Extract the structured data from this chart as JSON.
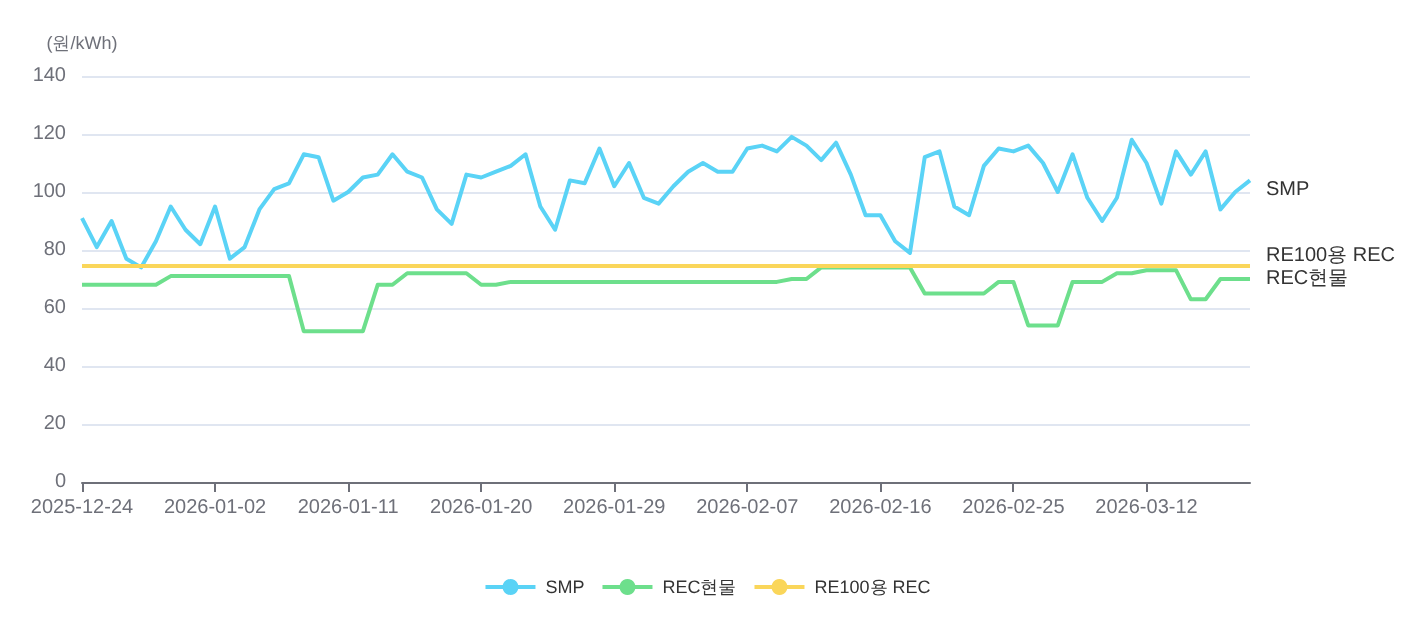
{
  "chart_data": {
    "type": "line",
    "ylabel": "(원/kWh)",
    "ylim": [
      0,
      140
    ],
    "yticks": [
      0,
      20,
      40,
      60,
      80,
      100,
      120,
      140
    ],
    "grid": "y",
    "legend": "bottom",
    "categories": [
      "2025-12-24",
      null,
      null,
      null,
      null,
      null,
      null,
      null,
      null,
      "2026-01-02",
      null,
      null,
      null,
      null,
      null,
      null,
      null,
      null,
      "2026-01-11",
      null,
      null,
      null,
      null,
      null,
      null,
      null,
      null,
      "2026-01-20",
      null,
      null,
      null,
      null,
      null,
      null,
      null,
      null,
      "2026-01-29",
      null,
      null,
      null,
      null,
      null,
      null,
      null,
      null,
      "2026-02-07",
      null,
      null,
      null,
      null,
      null,
      null,
      null,
      null,
      "2026-02-16",
      null,
      null,
      null,
      null,
      null,
      null,
      null,
      null,
      "2026-02-25",
      null,
      null,
      null,
      null,
      null,
      null,
      null,
      null,
      "2026-03-12",
      null,
      null,
      null,
      null,
      null,
      null,
      null
    ],
    "series": [
      {
        "name": "SMP",
        "color": "#5ad3f6",
        "values": [
          91,
          81,
          90,
          77,
          74,
          83,
          95,
          87,
          82,
          95,
          77,
          81,
          94,
          101,
          103,
          113,
          112,
          97,
          100,
          105,
          106,
          113,
          107,
          105,
          94,
          89,
          106,
          105,
          107,
          109,
          113,
          95,
          87,
          104,
          103,
          115,
          102,
          110,
          98,
          96,
          102,
          107,
          110,
          107,
          107,
          115,
          116,
          114,
          119,
          116,
          111,
          117,
          106,
          92,
          92,
          83,
          79,
          112,
          114,
          95,
          92,
          109,
          115,
          114,
          116,
          110,
          100,
          113,
          98,
          90,
          98,
          118,
          110,
          96,
          114,
          106,
          114,
          94,
          100,
          104
        ]
      },
      {
        "name": "REC현물",
        "color": "#6ddf8c",
        "values": [
          68,
          68,
          68,
          68,
          68,
          68,
          71,
          71,
          71,
          71,
          71,
          71,
          71,
          71,
          71,
          52,
          52,
          52,
          52,
          52,
          68,
          68,
          72,
          72,
          72,
          72,
          72,
          68,
          68,
          69,
          69,
          69,
          69,
          69,
          69,
          69,
          69,
          69,
          69,
          69,
          69,
          69,
          69,
          69,
          69,
          69,
          69,
          69,
          70,
          70,
          74,
          74,
          74,
          74,
          74,
          74,
          74,
          65,
          65,
          65,
          65,
          65,
          69,
          69,
          54,
          54,
          54,
          69,
          69,
          69,
          72,
          72,
          73,
          73,
          73,
          63,
          63,
          70,
          70,
          70
        ]
      },
      {
        "name": "RE100용 REC",
        "color": "#fad65a",
        "values": [
          74.5,
          74.5,
          74.5,
          74.5,
          74.5,
          74.5,
          74.5,
          74.5,
          74.5,
          74.5,
          74.5,
          74.5,
          74.5,
          74.5,
          74.5,
          74.5,
          74.5,
          74.5,
          74.5,
          74.5,
          74.5,
          74.5,
          74.5,
          74.5,
          74.5,
          74.5,
          74.5,
          74.5,
          74.5,
          74.5,
          74.5,
          74.5,
          74.5,
          74.5,
          74.5,
          74.5,
          74.5,
          74.5,
          74.5,
          74.5,
          74.5,
          74.5,
          74.5,
          74.5,
          74.5,
          74.5,
          74.5,
          74.5,
          74.5,
          74.5,
          74.5,
          74.5,
          74.5,
          74.5,
          74.5,
          74.5,
          74.5,
          74.5,
          74.5,
          74.5,
          74.5,
          74.5,
          74.5,
          74.5,
          74.5,
          74.5,
          74.5,
          74.5,
          74.5,
          74.5,
          74.5,
          74.5,
          74.5,
          74.5,
          74.5,
          74.5,
          74.5,
          74.5,
          74.5,
          74.5
        ]
      }
    ]
  }
}
